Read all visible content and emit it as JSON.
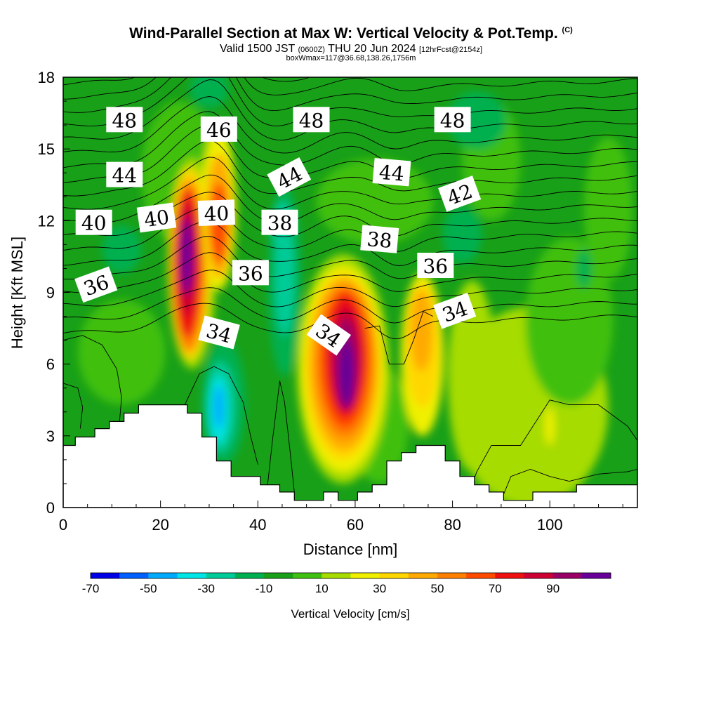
{
  "title": "Wind-Parallel Section at Max W: Vertical Velocity & Pot.Temp.",
  "title_tag": "(C)",
  "subtitle": {
    "main_a": "Valid 1500 JST",
    "utc": "(0600Z)",
    "main_b": "THU 20 Jun 2024",
    "forecast": "[12hrFcst@2154z]"
  },
  "box_info": "boxWmax=117@36.68,138.26,1756m",
  "chart_data": {
    "type": "heatmap",
    "xlabel": "Distance [nm]",
    "ylabel": "Height [Kft MSL]",
    "xlim": [
      0,
      118
    ],
    "ylim": [
      0,
      18
    ],
    "x_ticks": [
      0,
      20,
      40,
      60,
      80,
      100
    ],
    "y_ticks": [
      0,
      3,
      6,
      9,
      12,
      15,
      18
    ],
    "colorbar": {
      "label": "Vertical Velocity [cm/s]",
      "tick_labels": [
        -70,
        -50,
        -30,
        -10,
        10,
        30,
        50,
        70,
        90
      ],
      "bins": [
        -70,
        -60,
        -50,
        -40,
        -30,
        -20,
        -10,
        0,
        10,
        20,
        30,
        40,
        50,
        60,
        70,
        80,
        90,
        100
      ],
      "colors": [
        "#0000e6",
        "#0060ff",
        "#00aaff",
        "#00e5e5",
        "#00cc99",
        "#00b050",
        "#18a018",
        "#40c010",
        "#a6dc00",
        "#f0f000",
        "#ffd700",
        "#ffaa00",
        "#ff8000",
        "#ff4a00",
        "#ee1010",
        "#cc0033",
        "#990066",
        "#660099"
      ]
    },
    "updraft_cores": [
      {
        "x": 25.5,
        "y": 10.5,
        "w_max": 100
      },
      {
        "x": 32,
        "y": 11.5,
        "w_max": 60
      },
      {
        "x": 57.5,
        "y": 5.6,
        "w_max": 100
      },
      {
        "x": 73.5,
        "y": 7.5,
        "w_max": 40
      },
      {
        "x": 100,
        "y": 3.4,
        "w_max": 25
      }
    ],
    "downdraft_cores": [
      {
        "x": 32,
        "y": 4.2,
        "w_min": -48
      },
      {
        "x": 45.5,
        "y": 9.5,
        "w_min": -28
      },
      {
        "x": 45,
        "y": 11.8,
        "w_min": -26
      },
      {
        "x": 82,
        "y": 11.5,
        "w_min": -20
      }
    ],
    "terrain": [
      [
        0,
        2.6
      ],
      [
        2.5,
        2.6
      ],
      [
        2.5,
        2.95
      ],
      [
        5,
        2.95
      ],
      [
        5,
        2.95
      ],
      [
        6.5,
        2.95
      ],
      [
        6.5,
        3.3
      ],
      [
        9.5,
        3.3
      ],
      [
        9.5,
        3.6
      ],
      [
        12.5,
        3.6
      ],
      [
        12.5,
        3.95
      ],
      [
        15.5,
        3.95
      ],
      [
        15.5,
        4.3
      ],
      [
        25.5,
        4.3
      ],
      [
        25.5,
        3.95
      ],
      [
        28.5,
        3.95
      ],
      [
        28.5,
        2.95
      ],
      [
        31.5,
        2.95
      ],
      [
        31.5,
        1.95
      ],
      [
        34.5,
        1.95
      ],
      [
        34.5,
        1.3
      ],
      [
        40.5,
        1.3
      ],
      [
        40.5,
        0.95
      ],
      [
        44.5,
        0.95
      ],
      [
        44.5,
        0.65
      ],
      [
        47.5,
        0.65
      ],
      [
        47.5,
        0.3
      ],
      [
        53.5,
        0.3
      ],
      [
        53.5,
        0.65
      ],
      [
        56.5,
        0.65
      ],
      [
        56.5,
        0.3
      ],
      [
        60.5,
        0.3
      ],
      [
        60.5,
        0.65
      ],
      [
        63.5,
        0.65
      ],
      [
        63.5,
        0.95
      ],
      [
        66.5,
        0.95
      ],
      [
        66.5,
        1.95
      ],
      [
        69.5,
        1.95
      ],
      [
        69.5,
        2.3
      ],
      [
        72.5,
        2.3
      ],
      [
        72.5,
        2.6
      ],
      [
        78.5,
        2.6
      ],
      [
        78.5,
        1.95
      ],
      [
        81.5,
        1.95
      ],
      [
        81.5,
        1.3
      ],
      [
        84.5,
        1.3
      ],
      [
        84.5,
        0.95
      ],
      [
        87.5,
        0.95
      ],
      [
        87.5,
        0.65
      ],
      [
        90.5,
        0.65
      ],
      [
        90.5,
        0.3
      ],
      [
        96.5,
        0.3
      ],
      [
        96.5,
        0.65
      ],
      [
        105.5,
        0.65
      ],
      [
        105.5,
        0.95
      ],
      [
        118,
        0.95
      ]
    ],
    "theta_contour_labels": [
      {
        "text": "48",
        "x": 12.6,
        "y": 16.2,
        "angle": 0
      },
      {
        "text": "46",
        "x": 32,
        "y": 15.8,
        "angle": 0
      },
      {
        "text": "48",
        "x": 51,
        "y": 16.2,
        "angle": 0
      },
      {
        "text": "48",
        "x": 80,
        "y": 16.2,
        "angle": 0
      },
      {
        "text": "44",
        "x": 12.6,
        "y": 13.9,
        "angle": 0
      },
      {
        "text": "44",
        "x": 46.5,
        "y": 13.8,
        "angle": -28
      },
      {
        "text": "44",
        "x": 67.5,
        "y": 14.0,
        "angle": 5
      },
      {
        "text": "42",
        "x": 81.5,
        "y": 13.1,
        "angle": -20
      },
      {
        "text": "40",
        "x": 6.3,
        "y": 11.9,
        "angle": 0
      },
      {
        "text": "40",
        "x": 19.2,
        "y": 12.1,
        "angle": -8
      },
      {
        "text": "40",
        "x": 31.5,
        "y": 12.3,
        "angle": -2
      },
      {
        "text": "38",
        "x": 44.5,
        "y": 11.9,
        "angle": 0
      },
      {
        "text": "38",
        "x": 65,
        "y": 11.2,
        "angle": 5
      },
      {
        "text": "36",
        "x": 38.5,
        "y": 9.8,
        "angle": 0
      },
      {
        "text": "36",
        "x": 76.5,
        "y": 10.1,
        "angle": 0
      },
      {
        "text": "36",
        "x": 6.8,
        "y": 9.3,
        "angle": -20
      },
      {
        "text": "34",
        "x": 32,
        "y": 7.3,
        "angle": 15
      },
      {
        "text": "34",
        "x": 54.5,
        "y": 7.2,
        "angle": 35
      },
      {
        "text": "34",
        "x": 80.5,
        "y": 8.2,
        "angle": -20
      }
    ]
  }
}
